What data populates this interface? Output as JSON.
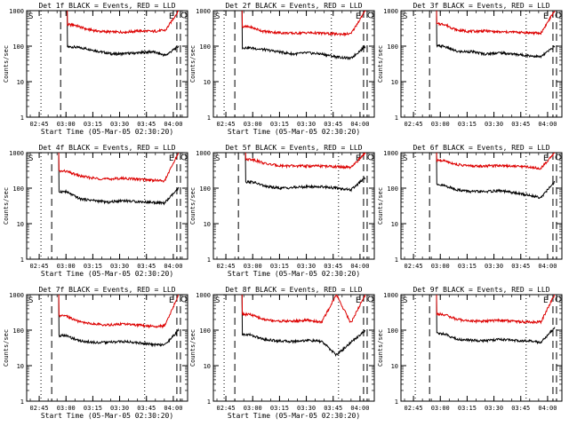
{
  "page": {
    "background": "#ffffff"
  },
  "style": {
    "events_color": "#000000",
    "lld_color": "#dd0000",
    "axis_color": "#000000"
  },
  "chart_data": [
    {
      "type": "line",
      "title": "Det 1f BLACK = Events, RED = LLD",
      "xlabel": "Start Time (05-Mar-05 02:30:20)",
      "ylabel": "Counts/sec",
      "xlim": [
        "02:38",
        "04:08"
      ],
      "ylim": [
        1,
        1000
      ],
      "yscale": "log",
      "xticks": [
        "02:45",
        "03:00",
        "03:15",
        "03:30",
        "03:45",
        "04:00"
      ],
      "yticks": [
        1,
        10,
        100,
        1000
      ],
      "corner_labels": {
        "left": "S",
        "right": "E"
      },
      "dotted_lines": [
        "02:46",
        "03:44"
      ],
      "dashed_lines": [
        "02:57",
        "04:02",
        "04:04"
      ],
      "series": [
        {
          "name": "Events",
          "values": [
            [
              0,
              0
            ],
            [
              1,
              95
            ],
            [
              2,
              85
            ],
            [
              3,
              70
            ],
            [
              4,
              60
            ],
            [
              5,
              62
            ],
            [
              6,
              65
            ],
            [
              7,
              70
            ],
            [
              8,
              55
            ],
            [
              9,
              100
            ]
          ]
        },
        {
          "name": "LLD",
          "values": [
            [
              0,
              0
            ],
            [
              1,
              400
            ],
            [
              2,
              300
            ],
            [
              3,
              260
            ],
            [
              4,
              250
            ],
            [
              5,
              250
            ],
            [
              6,
              270
            ],
            [
              7,
              260
            ],
            [
              8,
              280
            ],
            [
              9,
              1000
            ]
          ]
        }
      ]
    },
    {
      "type": "line",
      "title": "Det 2f BLACK = Events, RED = LLD",
      "xlabel": "Start Time (05-Mar-05 02:30:20)",
      "ylabel": "Counts/sec",
      "xlim": [
        "02:38",
        "04:08"
      ],
      "ylim": [
        1,
        1000
      ],
      "yscale": "log",
      "xticks": [
        "02:45",
        "03:00",
        "03:15",
        "03:30",
        "03:45",
        "04:00"
      ],
      "yticks": [
        1,
        10,
        100,
        1000
      ],
      "corner_labels": {
        "left": "S",
        "right": "E"
      },
      "dotted_lines": [
        "02:44",
        "03:44"
      ],
      "dashed_lines": [
        "02:50",
        "04:02",
        "04:04"
      ],
      "series": [
        {
          "name": "Events",
          "values": [
            [
              0,
              0
            ],
            [
              1,
              90
            ],
            [
              2,
              80
            ],
            [
              3,
              70
            ],
            [
              4,
              60
            ],
            [
              5,
              65
            ],
            [
              6,
              60
            ],
            [
              7,
              50
            ],
            [
              8,
              45
            ],
            [
              9,
              100
            ]
          ]
        },
        {
          "name": "LLD",
          "values": [
            [
              0,
              0
            ],
            [
              1,
              350
            ],
            [
              2,
              260
            ],
            [
              3,
              240
            ],
            [
              4,
              230
            ],
            [
              5,
              240
            ],
            [
              6,
              230
            ],
            [
              7,
              220
            ],
            [
              8,
              220
            ],
            [
              9,
              1000
            ]
          ]
        }
      ]
    },
    {
      "type": "line",
      "title": "Det 3f BLACK = Events, RED = LLD",
      "xlabel": "",
      "ylabel": "Counts/sec",
      "xlim": [
        "02:38",
        "04:08"
      ],
      "ylim": [
        1,
        1000
      ],
      "yscale": "log",
      "xticks": [
        "02:45",
        "03:00",
        "03:15",
        "03:30",
        "03:45",
        "04:00"
      ],
      "yticks": [
        1,
        10,
        100,
        1000
      ],
      "corner_labels": {
        "left": "S",
        "right": "E"
      },
      "dotted_lines": [
        "02:46",
        "03:48"
      ],
      "dashed_lines": [
        "02:54",
        "04:03",
        "04:05"
      ],
      "series": [
        {
          "name": "Events",
          "values": [
            [
              0,
              0
            ],
            [
              1,
              100
            ],
            [
              2,
              70
            ],
            [
              3,
              70
            ],
            [
              4,
              60
            ],
            [
              5,
              65
            ],
            [
              6,
              60
            ],
            [
              7,
              55
            ],
            [
              8,
              50
            ],
            [
              9,
              100
            ]
          ]
        },
        {
          "name": "LLD",
          "values": [
            [
              0,
              0
            ],
            [
              1,
              420
            ],
            [
              2,
              280
            ],
            [
              3,
              260
            ],
            [
              4,
              270
            ],
            [
              5,
              250
            ],
            [
              6,
              250
            ],
            [
              7,
              240
            ],
            [
              8,
              230
            ],
            [
              9,
              1000
            ]
          ]
        }
      ]
    },
    {
      "type": "line",
      "title": "Det 4f BLACK = Events, RED = LLD",
      "xlabel": "Start Time (05-Mar-05 02:30:20)",
      "ylabel": "Counts/sec",
      "xlim": [
        "02:38",
        "04:08"
      ],
      "ylim": [
        1,
        1000
      ],
      "yscale": "log",
      "xticks": [
        "02:45",
        "03:00",
        "03:15",
        "03:30",
        "03:45",
        "04:00"
      ],
      "yticks": [
        1,
        10,
        100,
        1000
      ],
      "corner_labels": {
        "left": "S",
        "right": "E"
      },
      "dotted_lines": [
        "02:46",
        "03:44"
      ],
      "dashed_lines": [
        "02:52",
        "04:02",
        "04:04"
      ],
      "series": [
        {
          "name": "Events",
          "values": [
            [
              0,
              0
            ],
            [
              1,
              80
            ],
            [
              2,
              50
            ],
            [
              3,
              45
            ],
            [
              4,
              40
            ],
            [
              5,
              45
            ],
            [
              6,
              42
            ],
            [
              7,
              40
            ],
            [
              8,
              38
            ],
            [
              9,
              100
            ]
          ]
        },
        {
          "name": "LLD",
          "values": [
            [
              0,
              0
            ],
            [
              1,
              300
            ],
            [
              2,
              220
            ],
            [
              3,
              190
            ],
            [
              4,
              180
            ],
            [
              5,
              190
            ],
            [
              6,
              180
            ],
            [
              7,
              170
            ],
            [
              8,
              160
            ],
            [
              9,
              1000
            ]
          ]
        }
      ]
    },
    {
      "type": "line",
      "title": "Det 5f BLACK = Events, RED = LLD",
      "xlabel": "Start Time (05-Mar-05 02:30:20)",
      "ylabel": "Counts/sec",
      "xlim": [
        "02:38",
        "04:08"
      ],
      "ylim": [
        1,
        1000
      ],
      "yscale": "log",
      "xticks": [
        "02:45",
        "03:00",
        "03:15",
        "03:30",
        "03:45",
        "04:00"
      ],
      "yticks": [
        1,
        10,
        100,
        1000
      ],
      "corner_labels": {
        "left": "S",
        "right": "E"
      },
      "dotted_lines": [
        "03:48"
      ],
      "dashed_lines": [
        "02:52",
        "04:02",
        "04:04"
      ],
      "series": [
        {
          "name": "Events",
          "values": [
            [
              0,
              0
            ],
            [
              1,
              150
            ],
            [
              2,
              110
            ],
            [
              3,
              100
            ],
            [
              4,
              105
            ],
            [
              5,
              110
            ],
            [
              6,
              110
            ],
            [
              7,
              100
            ],
            [
              8,
              90
            ],
            [
              9,
              200
            ]
          ]
        },
        {
          "name": "LLD",
          "values": [
            [
              0,
              0
            ],
            [
              1,
              650
            ],
            [
              2,
              480
            ],
            [
              3,
              430
            ],
            [
              4,
              420
            ],
            [
              5,
              420
            ],
            [
              6,
              420
            ],
            [
              7,
              400
            ],
            [
              8,
              380
            ],
            [
              9,
              1000
            ]
          ]
        }
      ]
    },
    {
      "type": "line",
      "title": "Det 6f BLACK = Events, RED = LLD",
      "xlabel": "",
      "ylabel": "Counts/sec",
      "xlim": [
        "02:38",
        "04:08"
      ],
      "ylim": [
        1,
        1000
      ],
      "yscale": "log",
      "xticks": [
        "02:45",
        "03:00",
        "03:15",
        "03:30",
        "03:45",
        "04:00"
      ],
      "yticks": [
        1,
        10,
        100,
        1000
      ],
      "corner_labels": {
        "left": "S",
        "right": "E"
      },
      "dotted_lines": [
        "02:46",
        "03:48"
      ],
      "dashed_lines": [
        "02:54",
        "04:03",
        "04:05"
      ],
      "series": [
        {
          "name": "Events",
          "values": [
            [
              0,
              0
            ],
            [
              1,
              120
            ],
            [
              2,
              90
            ],
            [
              3,
              80
            ],
            [
              4,
              80
            ],
            [
              5,
              85
            ],
            [
              6,
              75
            ],
            [
              7,
              65
            ],
            [
              8,
              55
            ],
            [
              9,
              150
            ]
          ]
        },
        {
          "name": "LLD",
          "values": [
            [
              0,
              0
            ],
            [
              1,
              600
            ],
            [
              2,
              460
            ],
            [
              3,
              420
            ],
            [
              4,
              420
            ],
            [
              5,
              440
            ],
            [
              6,
              420
            ],
            [
              7,
              400
            ],
            [
              8,
              360
            ],
            [
              9,
              1000
            ]
          ]
        }
      ]
    },
    {
      "type": "line",
      "title": "Det 7f BLACK = Events, RED = LLD",
      "xlabel": "Start Time (05-Mar-05 02:30:20)",
      "ylabel": "Counts/sec",
      "xlim": [
        "02:38",
        "04:08"
      ],
      "ylim": [
        1,
        1000
      ],
      "yscale": "log",
      "xticks": [
        "02:45",
        "03:00",
        "03:15",
        "03:30",
        "03:45",
        "04:00"
      ],
      "yticks": [
        1,
        10,
        100,
        1000
      ],
      "corner_labels": {
        "left": "S",
        "right": "E"
      },
      "dotted_lines": [
        "02:46",
        "03:44"
      ],
      "dashed_lines": [
        "02:52",
        "04:02",
        "04:04"
      ],
      "series": [
        {
          "name": "Events",
          "values": [
            [
              0,
              0
            ],
            [
              1,
              70
            ],
            [
              2,
              50
            ],
            [
              3,
              45
            ],
            [
              4,
              45
            ],
            [
              5,
              48
            ],
            [
              6,
              45
            ],
            [
              7,
              40
            ],
            [
              8,
              38
            ],
            [
              9,
              100
            ]
          ]
        },
        {
          "name": "LLD",
          "values": [
            [
              0,
              0
            ],
            [
              1,
              250
            ],
            [
              2,
              170
            ],
            [
              3,
              150
            ],
            [
              4,
              140
            ],
            [
              5,
              150
            ],
            [
              6,
              140
            ],
            [
              7,
              130
            ],
            [
              8,
              130
            ],
            [
              9,
              1000
            ]
          ]
        }
      ]
    },
    {
      "type": "line",
      "title": "Det 8f BLACK = Events, RED = LLD",
      "xlabel": "Start Time (05-Mar-05 02:30:20)",
      "ylabel": "Counts/sec",
      "xlim": [
        "02:38",
        "04:08"
      ],
      "ylim": [
        1,
        1000
      ],
      "yscale": "log",
      "xticks": [
        "02:45",
        "03:00",
        "03:15",
        "03:30",
        "03:45",
        "04:00"
      ],
      "yticks": [
        1,
        10,
        100,
        1000
      ],
      "corner_labels": {
        "left": "S",
        "right": "E"
      },
      "dotted_lines": [
        "02:44",
        "03:48"
      ],
      "dashed_lines": [
        "02:50",
        "04:02",
        "04:04"
      ],
      "series": [
        {
          "name": "Events",
          "values": [
            [
              0,
              0
            ],
            [
              1,
              75
            ],
            [
              2,
              55
            ],
            [
              3,
              50
            ],
            [
              4,
              48
            ],
            [
              5,
              52
            ],
            [
              6,
              48
            ],
            [
              7,
              20
            ],
            [
              8,
              45
            ],
            [
              9,
              100
            ]
          ]
        },
        {
          "name": "LLD",
          "values": [
            [
              0,
              0
            ],
            [
              1,
              280
            ],
            [
              2,
              200
            ],
            [
              3,
              180
            ],
            [
              4,
              180
            ],
            [
              5,
              190
            ],
            [
              6,
              170
            ],
            [
              7,
              1000
            ],
            [
              8,
              160
            ],
            [
              9,
              1000
            ]
          ]
        }
      ]
    },
    {
      "type": "line",
      "title": "Det 9f BLACK = Events, RED = LLD",
      "xlabel": "",
      "ylabel": "Counts/sec",
      "xlim": [
        "02:38",
        "04:08"
      ],
      "ylim": [
        1,
        1000
      ],
      "yscale": "log",
      "xticks": [
        "02:45",
        "03:00",
        "03:15",
        "03:30",
        "03:45",
        "04:00"
      ],
      "yticks": [
        1,
        10,
        100,
        1000
      ],
      "corner_labels": {
        "left": "S",
        "right": "E"
      },
      "dotted_lines": [
        "02:46",
        "03:48"
      ],
      "dashed_lines": [
        "02:54",
        "04:03",
        "04:05"
      ],
      "series": [
        {
          "name": "Events",
          "values": [
            [
              0,
              0
            ],
            [
              1,
              80
            ],
            [
              2,
              55
            ],
            [
              3,
              52
            ],
            [
              4,
              50
            ],
            [
              5,
              55
            ],
            [
              6,
              52
            ],
            [
              7,
              50
            ],
            [
              8,
              45
            ],
            [
              9,
              120
            ]
          ]
        },
        {
          "name": "LLD",
          "values": [
            [
              0,
              0
            ],
            [
              1,
              280
            ],
            [
              2,
              200
            ],
            [
              3,
              180
            ],
            [
              4,
              180
            ],
            [
              5,
              190
            ],
            [
              6,
              180
            ],
            [
              7,
              170
            ],
            [
              8,
              170
            ],
            [
              9,
              1000
            ]
          ]
        }
      ]
    }
  ]
}
